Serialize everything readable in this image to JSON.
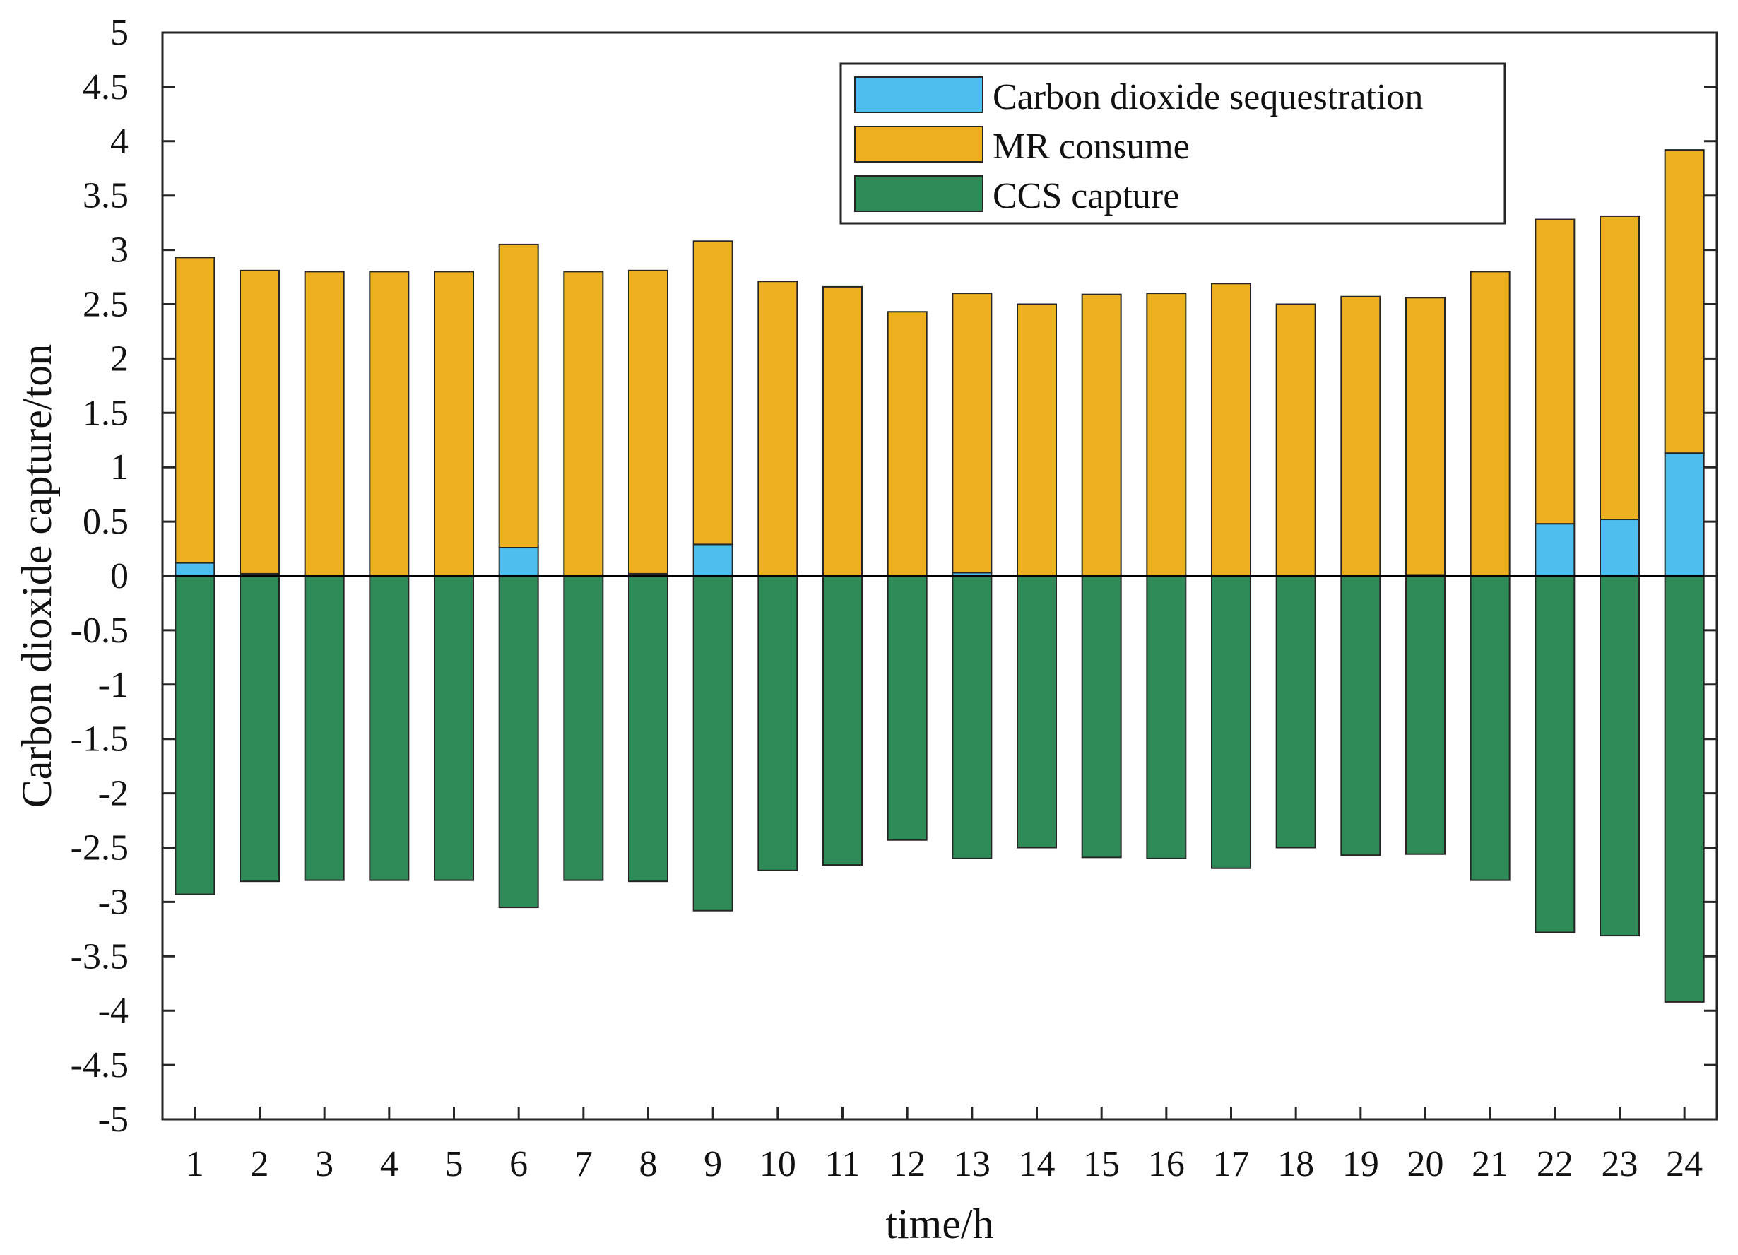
{
  "chart_data": {
    "type": "bar",
    "stacked": true,
    "categories": [
      "1",
      "2",
      "3",
      "4",
      "5",
      "6",
      "7",
      "8",
      "9",
      "10",
      "11",
      "12",
      "13",
      "14",
      "15",
      "16",
      "17",
      "18",
      "19",
      "20",
      "21",
      "22",
      "23",
      "24"
    ],
    "series": [
      {
        "name": "Carbon dioxide sequestration",
        "color": "#4DBEEE",
        "values": [
          0.12,
          0.02,
          0,
          0,
          0,
          0.26,
          0,
          0.02,
          0.29,
          0,
          0,
          0,
          0.03,
          0,
          0,
          0,
          0,
          0,
          0,
          0.01,
          0,
          0.48,
          0.52,
          1.13
        ]
      },
      {
        "name": "MR consume",
        "color": "#EDB120",
        "values": [
          2.81,
          2.79,
          2.8,
          2.8,
          2.8,
          2.79,
          2.8,
          2.79,
          2.79,
          2.71,
          2.66,
          2.43,
          2.57,
          2.5,
          2.59,
          2.6,
          2.69,
          2.5,
          2.57,
          2.55,
          2.8,
          2.8,
          2.79,
          2.79
        ]
      },
      {
        "name": "CCS capture",
        "color": "#2E8B57",
        "values": [
          -2.93,
          -2.81,
          -2.8,
          -2.8,
          -2.8,
          -3.05,
          -2.8,
          -2.81,
          -3.08,
          -2.71,
          -2.66,
          -2.43,
          -2.6,
          -2.5,
          -2.59,
          -2.6,
          -2.69,
          -2.5,
          -2.57,
          -2.56,
          -2.8,
          -3.28,
          -3.31,
          -3.92
        ]
      }
    ],
    "xlabel": "time/h",
    "ylabel": "Carbon dioxide capture/ton",
    "ylim": [
      -5,
      5
    ],
    "yticks": [
      "5",
      "4.5",
      "4",
      "3.5",
      "3",
      "2.5",
      "2",
      "1.5",
      "1",
      "0.5",
      "0",
      "-0.5",
      "-1",
      "-1.5",
      "-2",
      "-2.5",
      "-3",
      "-3.5",
      "-4",
      "-4.5",
      "-5"
    ],
    "legend_position": "top-right",
    "grid": false
  }
}
